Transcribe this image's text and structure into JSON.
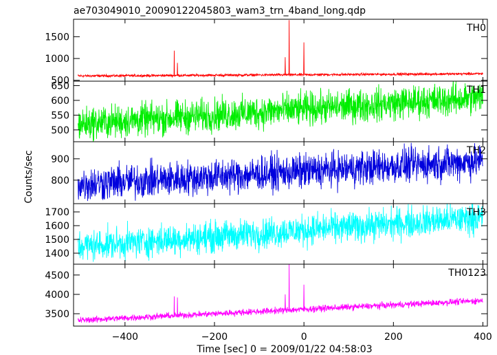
{
  "chart_data": {
    "type": "line",
    "title": "ae703049010_20090122045803_wam3_trn_4band_long.qdp",
    "xlabel": "Time [sec] 0 = 2009/01/22 04:58:03",
    "ylabel": "Counts/sec",
    "xlim": [
      -515,
      410
    ],
    "x_ticks": [
      -400,
      -200,
      0,
      200,
      400
    ],
    "x_tick_labels": [
      "−400",
      "−200",
      "0",
      "200",
      "400"
    ],
    "grid": false,
    "panels": [
      {
        "name": "TH0",
        "color": "#ff0000",
        "ylim": [
          480,
          1900
        ],
        "yticks": [
          500,
          1000,
          1500
        ],
        "base_start": 600,
        "base_end": 650,
        "noise": 28,
        "spikes": [
          {
            "x": -290,
            "value": 1180
          },
          {
            "x": -283,
            "value": 900
          },
          {
            "x": -42,
            "value": 1030
          },
          {
            "x": -33,
            "value": 1880
          },
          {
            "x": 0,
            "value": 1370
          }
        ]
      },
      {
        "name": "TH1",
        "color": "#00ee00",
        "ylim": [
          460,
          665
        ],
        "yticks": [
          500,
          550,
          600,
          650
        ],
        "base_start": 520,
        "base_end": 610,
        "noise": 55,
        "spikes": []
      },
      {
        "name": "TH2",
        "color": "#0000dd",
        "ylim": [
          690,
          980
        ],
        "yticks": [
          800,
          900
        ],
        "base_start": 780,
        "base_end": 890,
        "noise": 80,
        "spikes": []
      },
      {
        "name": "TH3",
        "color": "#00ffff",
        "ylim": [
          1320,
          1760
        ],
        "yticks": [
          1400,
          1500,
          1600,
          1700
        ],
        "base_start": 1450,
        "base_end": 1660,
        "noise": 110,
        "spikes": []
      },
      {
        "name": "TH0123",
        "color": "#ff00ff",
        "ylim": [
          3180,
          4780
        ],
        "yticks": [
          3500,
          4000,
          4500
        ],
        "base_start": 3330,
        "base_end": 3840,
        "noise": 80,
        "spikes": [
          {
            "x": -290,
            "value": 3950
          },
          {
            "x": -283,
            "value": 3920
          },
          {
            "x": -42,
            "value": 4000
          },
          {
            "x": -33,
            "value": 4780
          },
          {
            "x": 0,
            "value": 4250
          }
        ]
      }
    ]
  }
}
